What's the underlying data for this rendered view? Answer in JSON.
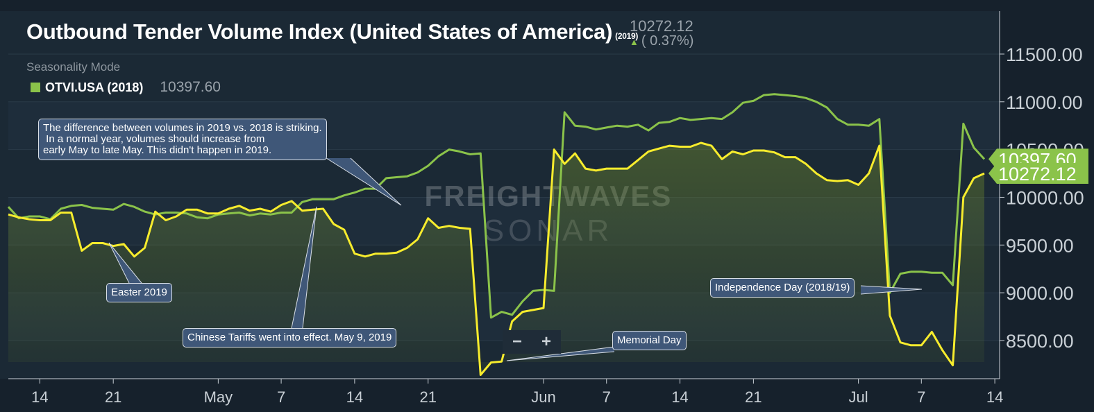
{
  "header": {
    "title": "Outbound Tender Volume Index (United States of America)",
    "title_year": "(2019)",
    "current_value": "10272.12",
    "change": "( 0.37%)",
    "mode": "Seasonality Mode",
    "legend_label": "OTVI.USA (2018)",
    "legend_value": "10397.60"
  },
  "watermark": {
    "line1": "FREIGHTWAVES",
    "line2": "SONAR"
  },
  "zoom": {
    "minus": "−",
    "plus": "+"
  },
  "colors": {
    "series_2019": "#f7ec2d",
    "series_2018": "#8bc34a",
    "background": "#1b2935",
    "callout": "#3f5778"
  },
  "annotations": [
    {
      "id": "diff",
      "text": "The difference between volumes in 2019 vs. 2018 is striking.\n In a normal year, volumes should increase from\nearly May to late May. This didn't happen in 2019."
    },
    {
      "id": "easter",
      "text": "Easter 2019"
    },
    {
      "id": "tariffs",
      "text": "Chinese Tariffs went into effect. May 9, 2019"
    },
    {
      "id": "memorial",
      "text": "Memorial Day"
    },
    {
      "id": "independence",
      "text": "Independence Day (2018/19)"
    }
  ],
  "chart_data": {
    "type": "line",
    "xlabel": "",
    "ylabel": "",
    "x_start": "2019-04-11",
    "x_end": "2019-07-13",
    "ylim": [
      8100,
      11950
    ],
    "y_ticks": [
      8500,
      9000,
      9500,
      10000,
      10500,
      11000,
      11500
    ],
    "y_tick_labels": [
      "8500.00",
      "9000.00",
      "9500.00",
      "10000.00",
      "10500.00",
      "11000.00",
      "11500.00"
    ],
    "x_ticks": [
      "2019-04-14",
      "2019-04-21",
      "2019-05-01",
      "2019-05-07",
      "2019-05-14",
      "2019-05-21",
      "2019-06-01",
      "2019-06-07",
      "2019-06-14",
      "2019-06-21",
      "2019-07-01",
      "2019-07-07",
      "2019-07-14"
    ],
    "x_tick_labels": [
      "14",
      "21",
      "May",
      "7",
      "14",
      "21",
      "Jun",
      "7",
      "14",
      "21",
      "Jul",
      "7",
      "14"
    ],
    "last_value_labels": {
      "2018": "10397.60",
      "2019": "10272.12"
    },
    "series": [
      {
        "name": "OTVI.USA (2019)",
        "color": "#f7ec2d",
        "x": [
          "2019-04-11",
          "2019-04-12",
          "2019-04-13",
          "2019-04-14",
          "2019-04-15",
          "2019-04-16",
          "2019-04-17",
          "2019-04-18",
          "2019-04-19",
          "2019-04-20",
          "2019-04-21",
          "2019-04-22",
          "2019-04-23",
          "2019-04-24",
          "2019-04-25",
          "2019-04-26",
          "2019-04-27",
          "2019-04-28",
          "2019-04-29",
          "2019-04-30",
          "2019-05-01",
          "2019-05-02",
          "2019-05-03",
          "2019-05-04",
          "2019-05-05",
          "2019-05-06",
          "2019-05-07",
          "2019-05-08",
          "2019-05-09",
          "2019-05-10",
          "2019-05-11",
          "2019-05-12",
          "2019-05-13",
          "2019-05-14",
          "2019-05-15",
          "2019-05-16",
          "2019-05-17",
          "2019-05-18",
          "2019-05-19",
          "2019-05-20",
          "2019-05-21",
          "2019-05-22",
          "2019-05-23",
          "2019-05-24",
          "2019-05-25",
          "2019-05-26",
          "2019-05-27",
          "2019-05-28",
          "2019-05-29",
          "2019-05-30",
          "2019-05-31",
          "2019-06-01",
          "2019-06-02",
          "2019-06-03",
          "2019-06-04",
          "2019-06-05",
          "2019-06-06",
          "2019-06-07",
          "2019-06-08",
          "2019-06-09",
          "2019-06-10",
          "2019-06-11",
          "2019-06-12",
          "2019-06-13",
          "2019-06-14",
          "2019-06-15",
          "2019-06-16",
          "2019-06-17",
          "2019-06-18",
          "2019-06-19",
          "2019-06-20",
          "2019-06-21",
          "2019-06-22",
          "2019-06-23",
          "2019-06-24",
          "2019-06-25",
          "2019-06-26",
          "2019-06-27",
          "2019-06-28",
          "2019-06-29",
          "2019-06-30",
          "2019-07-01",
          "2019-07-02",
          "2019-07-03",
          "2019-07-04",
          "2019-07-05",
          "2019-07-06",
          "2019-07-07",
          "2019-07-08",
          "2019-07-09",
          "2019-07-10",
          "2019-07-11",
          "2019-07-12",
          "2019-07-13"
        ],
        "values": [
          9820,
          9790,
          9770,
          9760,
          9760,
          9840,
          9840,
          9440,
          9520,
          9520,
          9490,
          9510,
          9380,
          9470,
          9850,
          9760,
          9800,
          9870,
          9870,
          9830,
          9830,
          9880,
          9910,
          9860,
          9880,
          9850,
          9920,
          9960,
          9860,
          9870,
          9880,
          9720,
          9660,
          9410,
          9380,
          9410,
          9410,
          9420,
          9470,
          9560,
          9780,
          9680,
          9700,
          9680,
          9670,
          8140,
          8270,
          8280,
          8700,
          8800,
          8820,
          8840,
          10500,
          10350,
          10460,
          10300,
          10280,
          10300,
          10300,
          10300,
          10390,
          10480,
          10510,
          10540,
          10530,
          10530,
          10570,
          10540,
          10400,
          10480,
          10450,
          10490,
          10490,
          10470,
          10420,
          10420,
          10350,
          10250,
          10180,
          10170,
          10180,
          10130,
          10250,
          10540,
          8760,
          8480,
          8450,
          8450,
          8590,
          8400,
          8240,
          10000,
          10200,
          10250
        ]
      },
      {
        "name": "OTVI.USA (2018)",
        "color": "#8bc34a",
        "x": [
          "2019-04-11",
          "2019-04-12",
          "2019-04-13",
          "2019-04-14",
          "2019-04-15",
          "2019-04-16",
          "2019-04-17",
          "2019-04-18",
          "2019-04-19",
          "2019-04-20",
          "2019-04-21",
          "2019-04-22",
          "2019-04-23",
          "2019-04-24",
          "2019-04-25",
          "2019-04-26",
          "2019-04-27",
          "2019-04-28",
          "2019-04-29",
          "2019-04-30",
          "2019-05-01",
          "2019-05-02",
          "2019-05-03",
          "2019-05-04",
          "2019-05-05",
          "2019-05-06",
          "2019-05-07",
          "2019-05-08",
          "2019-05-09",
          "2019-05-10",
          "2019-05-11",
          "2019-05-12",
          "2019-05-13",
          "2019-05-14",
          "2019-05-15",
          "2019-05-16",
          "2019-05-17",
          "2019-05-18",
          "2019-05-19",
          "2019-05-20",
          "2019-05-21",
          "2019-05-22",
          "2019-05-23",
          "2019-05-24",
          "2019-05-25",
          "2019-05-26",
          "2019-05-27",
          "2019-05-28",
          "2019-05-29",
          "2019-05-30",
          "2019-05-31",
          "2019-06-01",
          "2019-06-02",
          "2019-06-03",
          "2019-06-04",
          "2019-06-05",
          "2019-06-06",
          "2019-06-07",
          "2019-06-08",
          "2019-06-09",
          "2019-06-10",
          "2019-06-11",
          "2019-06-12",
          "2019-06-13",
          "2019-06-14",
          "2019-06-15",
          "2019-06-16",
          "2019-06-17",
          "2019-06-18",
          "2019-06-19",
          "2019-06-20",
          "2019-06-21",
          "2019-06-22",
          "2019-06-23",
          "2019-06-24",
          "2019-06-25",
          "2019-06-26",
          "2019-06-27",
          "2019-06-28",
          "2019-06-29",
          "2019-06-30",
          "2019-07-01",
          "2019-07-02",
          "2019-07-03",
          "2019-07-04",
          "2019-07-05",
          "2019-07-06",
          "2019-07-07",
          "2019-07-08",
          "2019-07-09",
          "2019-07-10",
          "2019-07-11",
          "2019-07-12",
          "2019-07-13"
        ],
        "values": [
          9900,
          9780,
          9800,
          9800,
          9770,
          9880,
          9910,
          9920,
          9890,
          9880,
          9870,
          9930,
          9900,
          9850,
          9820,
          9840,
          9840,
          9830,
          9790,
          9780,
          9820,
          9830,
          9840,
          9810,
          9830,
          9820,
          9840,
          9840,
          9950,
          9980,
          9980,
          9980,
          10020,
          10050,
          10090,
          10090,
          10200,
          10210,
          10220,
          10260,
          10330,
          10430,
          10500,
          10480,
          10450,
          10460,
          8740,
          8800,
          8770,
          8910,
          9020,
          9030,
          9020,
          10890,
          10750,
          10740,
          10710,
          10730,
          10750,
          10740,
          10760,
          10700,
          10780,
          10790,
          10830,
          10810,
          10820,
          10830,
          10820,
          10890,
          10990,
          11010,
          11070,
          11080,
          11070,
          11060,
          11040,
          11000,
          10940,
          10820,
          10760,
          10760,
          10750,
          10820,
          9000,
          9200,
          9220,
          9220,
          9210,
          9210,
          9080,
          10770,
          10520,
          10400
        ]
      }
    ]
  }
}
